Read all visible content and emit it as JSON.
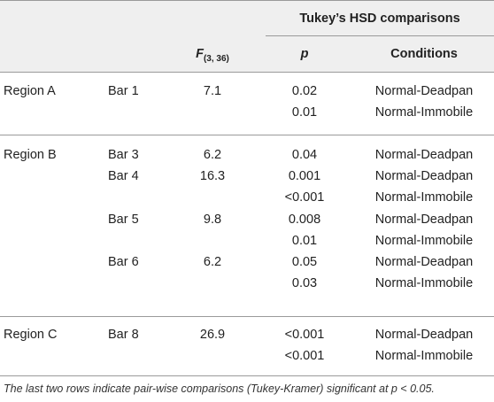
{
  "header": {
    "group_title": "Tukey’s HSD comparisons",
    "f_label": "F",
    "f_sub": "(3, 36)",
    "p_label": "p",
    "conditions_label": "Conditions"
  },
  "rows": [
    {
      "region": "Region A",
      "bar": "Bar 1",
      "f": "7.1",
      "p": "0.02",
      "cond": "Normal-Deadpan"
    },
    {
      "region": "",
      "bar": "",
      "f": "",
      "p": "0.01",
      "cond": "Normal-Immobile"
    },
    {
      "region": "Region B",
      "bar": "Bar 3",
      "f": "6.2",
      "p": "0.04",
      "cond": "Normal-Deadpan"
    },
    {
      "region": "",
      "bar": "Bar 4",
      "f": "16.3",
      "p": "0.001",
      "cond": "Normal-Deadpan"
    },
    {
      "region": "",
      "bar": "",
      "f": "",
      "p": "<0.001",
      "cond": "Normal-Immobile"
    },
    {
      "region": "",
      "bar": "Bar 5",
      "f": "9.8",
      "p": "0.008",
      "cond": "Normal-Deadpan"
    },
    {
      "region": "",
      "bar": "",
      "f": "",
      "p": "0.01",
      "cond": "Normal-Immobile"
    },
    {
      "region": "",
      "bar": "Bar 6",
      "f": "6.2",
      "p": "0.05",
      "cond": "Normal-Deadpan"
    },
    {
      "region": "",
      "bar": "",
      "f": "",
      "p": "0.03",
      "cond": "Normal-Immobile"
    },
    {
      "region": "Region C",
      "bar": "Bar 8",
      "f": "26.9",
      "p": "<0.001",
      "cond": "Normal-Deadpan"
    },
    {
      "region": "",
      "bar": "",
      "f": "",
      "p": "<0.001",
      "cond": "Normal-Immobile"
    }
  ],
  "footnote": "The last two rows indicate pair-wise comparisons (Tukey-Kramer) significant at p < 0.05."
}
